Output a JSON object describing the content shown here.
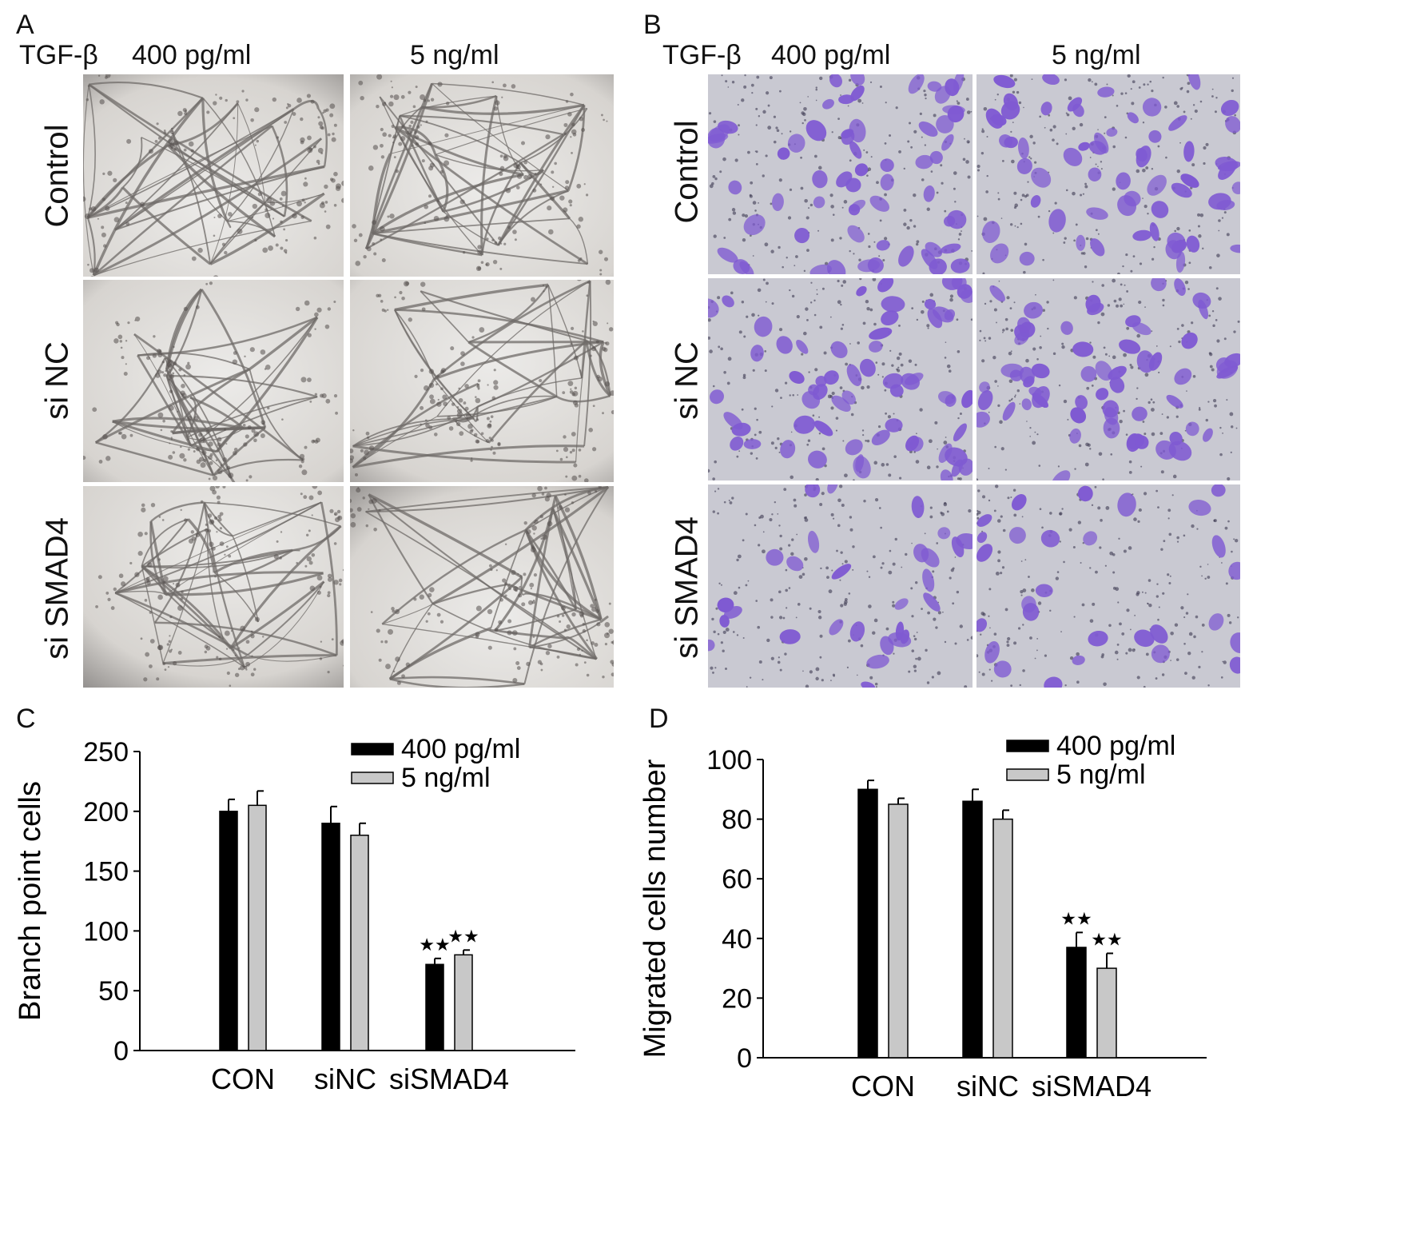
{
  "panels": {
    "a": {
      "letter": "A",
      "treatment_label": "TGF-β",
      "columns": [
        "400 pg/ml",
        "5 ng/ml"
      ],
      "rows": [
        "Control",
        "si NC",
        "si SMAD4"
      ]
    },
    "b": {
      "letter": "B",
      "treatment_label": "TGF-β",
      "columns": [
        "400 pg/ml",
        "5 ng/ml"
      ],
      "rows": [
        "Control",
        "si NC",
        "si SMAD4"
      ]
    },
    "c": {
      "letter": "C"
    },
    "d": {
      "letter": "D"
    }
  },
  "colors": {
    "bar_400": "#000000",
    "bar_5": "#c8c8c8",
    "tube_bg": "#d9d6d2",
    "crystal_violet": "#7f5ad2",
    "stain_bg": "#c9c9d2"
  },
  "chart_data": [
    {
      "type": "bar",
      "panel": "C",
      "categories": [
        "CON",
        "siNC",
        "siSMAD4"
      ],
      "series": [
        {
          "name": "400 pg/ml",
          "values": [
            200,
            190,
            72
          ],
          "errors": [
            10,
            14,
            5
          ]
        },
        {
          "name": "5 ng/ml",
          "values": [
            205,
            180,
            80
          ],
          "errors": [
            12,
            10,
            4
          ]
        }
      ],
      "significance": [
        "",
        "",
        "★★"
      ],
      "ylabel": "Branch point cells",
      "ylim": [
        0,
        250
      ],
      "yticks": [
        0,
        50,
        100,
        150,
        200,
        250
      ],
      "legend": "top-right"
    },
    {
      "type": "bar",
      "panel": "D",
      "categories": [
        "CON",
        "siNC",
        "siSMAD4"
      ],
      "series": [
        {
          "name": "400 pg/ml",
          "values": [
            90,
            86,
            37
          ],
          "errors": [
            3,
            4,
            5
          ]
        },
        {
          "name": "5 ng/ml",
          "values": [
            85,
            80,
            30
          ],
          "errors": [
            2,
            3,
            5
          ]
        }
      ],
      "significance": [
        "",
        "",
        "★★"
      ],
      "ylabel": "Migrated cells number",
      "ylim": [
        0,
        100
      ],
      "yticks": [
        0,
        20,
        40,
        60,
        80,
        100
      ],
      "legend": "top-right"
    }
  ]
}
